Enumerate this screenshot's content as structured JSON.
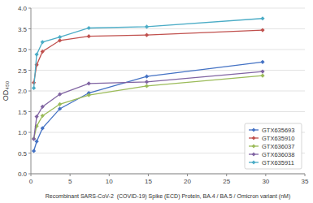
{
  "chart_data": {
    "type": "line",
    "xlabel": "Recombinant SARS-CoV-2  (COVID-19) Spike (ECD) Protein, BA.4 / BA.5 / Omicron variant (nM)",
    "ylabel": "OD₄₅₀",
    "x": [
      0.37,
      0.74,
      1.48,
      3.7,
      7.4,
      14.8,
      29.6
    ],
    "series": [
      {
        "name": "GTX635693",
        "color": "#4472C4",
        "values": [
          0.55,
          0.78,
          1.1,
          1.57,
          1.95,
          2.35,
          2.7
        ]
      },
      {
        "name": "GTX635910",
        "color": "#C0504D",
        "values": [
          2.2,
          2.63,
          2.95,
          3.22,
          3.32,
          3.35,
          3.47
        ]
      },
      {
        "name": "GTX636037",
        "color": "#9BBB59",
        "values": [
          0.85,
          1.15,
          1.4,
          1.68,
          1.9,
          2.12,
          2.37
        ]
      },
      {
        "name": "GTX636038",
        "color": "#8064A2",
        "values": [
          0.84,
          1.38,
          1.62,
          1.92,
          2.18,
          2.22,
          2.47
        ]
      },
      {
        "name": "GTX635911",
        "color": "#4BACC6",
        "values": [
          2.07,
          2.88,
          3.18,
          3.3,
          3.52,
          3.55,
          3.75
        ]
      }
    ],
    "xlim": [
      0,
      35
    ],
    "ylim": [
      0,
      4
    ],
    "xticks": [
      0,
      5,
      10,
      15,
      20,
      25,
      30,
      35
    ],
    "yticks": [
      {
        "value": 0,
        "label": "0.0"
      },
      0.5,
      {
        "value": 1.0,
        "label": "1.0"
      },
      1.5,
      {
        "value": 2.0,
        "label": "2.0"
      },
      2.5,
      {
        "value": 3.0,
        "label": "3.0"
      },
      3.5,
      {
        "value": 4.0,
        "label": "4.0"
      }
    ],
    "grid": true,
    "legend": "lower right",
    "marker": "diamond"
  }
}
